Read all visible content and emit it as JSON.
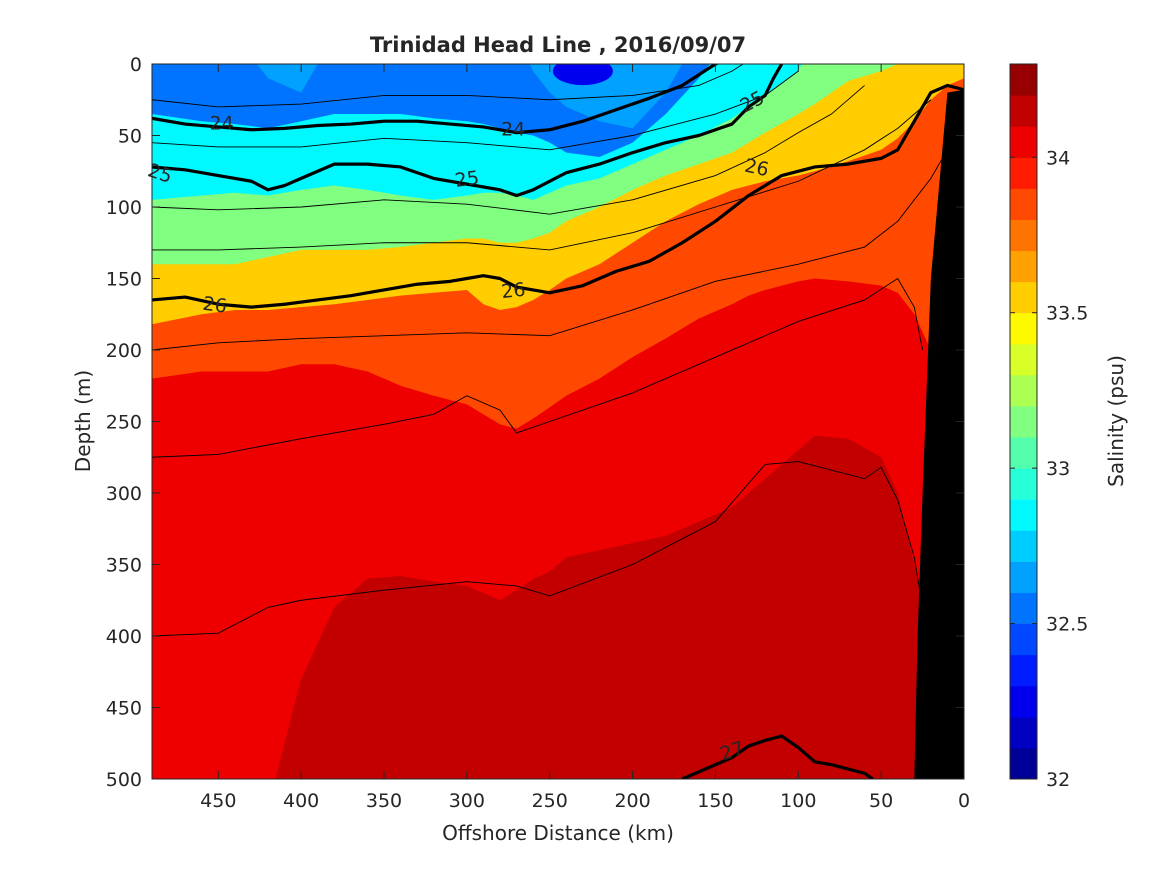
{
  "chart_data": {
    "type": "heatmap",
    "title": "Trinidad Head Line , 2016/09/07",
    "xlabel": "Offshore Distance (km)",
    "ylabel": "Depth (m)",
    "colorbar_label": "Salinity (psu)",
    "xlim": [
      490,
      0
    ],
    "x_reversed": true,
    "ylim": [
      0,
      500
    ],
    "y_reversed": true,
    "clim": [
      32,
      34.3
    ],
    "x_ticks": [
      450,
      400,
      350,
      300,
      250,
      200,
      150,
      100,
      50,
      0
    ],
    "y_ticks": [
      0,
      50,
      100,
      150,
      200,
      250,
      300,
      350,
      400,
      450,
      500
    ],
    "colorbar_ticks": [
      32,
      32.5,
      33,
      33.5,
      34
    ],
    "colorbar_levels": 23,
    "colormap": "jet",
    "grid": false,
    "profile_x": [
      490,
      460,
      440,
      420,
      400,
      380,
      360,
      340,
      320,
      300,
      290,
      280,
      270,
      260,
      250,
      240,
      220,
      200,
      180,
      160,
      140,
      130,
      120,
      100,
      90,
      70,
      50,
      40,
      30,
      20,
      10,
      0
    ],
    "salinity_isolines": [
      {
        "level": 32.5,
        "depth": [
          -20,
          -20,
          -20,
          10,
          20,
          -20,
          -20,
          -20,
          -20,
          -20,
          -20,
          -20,
          -20,
          5,
          20,
          30,
          40,
          45,
          20,
          -20,
          -20,
          -20,
          -20,
          -20,
          -20,
          -20,
          -20,
          -20,
          -20,
          -20,
          -20,
          -20
        ]
      },
      {
        "level": 32.8,
        "depth": [
          35,
          40,
          42,
          45,
          40,
          35,
          35,
          35,
          38,
          40,
          42,
          45,
          48,
          50,
          55,
          62,
          65,
          55,
          35,
          10,
          -20,
          -20,
          -20,
          -20,
          -20,
          -20,
          -20,
          -20,
          -20,
          -20,
          -20,
          -20
        ]
      },
      {
        "level": 33.1,
        "depth": [
          95,
          92,
          90,
          92,
          88,
          85,
          88,
          92,
          95,
          92,
          90,
          90,
          92,
          95,
          90,
          85,
          80,
          70,
          60,
          50,
          38,
          30,
          22,
          5,
          -20,
          -20,
          -20,
          -20,
          -20,
          -20,
          -20,
          -20
        ]
      },
      {
        "level": 33.5,
        "depth": [
          140,
          140,
          140,
          135,
          130,
          130,
          130,
          128,
          125,
          122,
          122,
          125,
          125,
          122,
          118,
          110,
          100,
          88,
          78,
          70,
          62,
          55,
          48,
          35,
          28,
          12,
          5,
          0,
          -20,
          -20,
          -20,
          -20
        ]
      },
      {
        "level": 33.8,
        "depth": [
          182,
          175,
          172,
          172,
          170,
          168,
          165,
          162,
          160,
          158,
          168,
          172,
          170,
          165,
          158,
          150,
          140,
          125,
          110,
          98,
          88,
          85,
          82,
          78,
          75,
          68,
          60,
          52,
          40,
          25,
          15,
          10
        ]
      },
      {
        "level": 34.0,
        "depth": [
          220,
          215,
          215,
          215,
          210,
          210,
          215,
          225,
          232,
          238,
          245,
          252,
          255,
          248,
          240,
          232,
          220,
          205,
          192,
          178,
          168,
          162,
          158,
          152,
          150,
          152,
          155,
          160,
          175,
          200,
          230,
          500
        ]
      },
      {
        "level": 34.15,
        "depth": [
          520,
          520,
          520,
          520,
          430,
          380,
          360,
          358,
          362,
          365,
          370,
          375,
          368,
          360,
          355,
          345,
          340,
          335,
          330,
          320,
          310,
          300,
          290,
          270,
          260,
          262,
          275,
          300,
          350,
          400,
          500,
          500
        ]
      }
    ],
    "density_contours": [
      {
        "level": 24,
        "x": [
          490,
          470,
          450,
          430,
          410,
          390,
          370,
          350,
          330,
          310,
          290,
          270,
          250,
          230,
          210,
          190,
          170,
          150,
          130,
          120
        ],
        "depth": [
          38,
          42,
          44,
          46,
          45,
          43,
          42,
          40,
          40,
          42,
          44,
          48,
          46,
          40,
          32,
          24,
          15,
          0,
          -10,
          -20
        ]
      },
      {
        "level": 25,
        "x": [
          490,
          470,
          450,
          430,
          420,
          410,
          400,
          390,
          380,
          360,
          340,
          320,
          300,
          280,
          270,
          260,
          240,
          220,
          200,
          180,
          160,
          140,
          130,
          120,
          115,
          110
        ],
        "depth": [
          72,
          74,
          78,
          82,
          88,
          85,
          80,
          75,
          70,
          70,
          72,
          80,
          84,
          88,
          92,
          88,
          76,
          70,
          62,
          55,
          50,
          42,
          30,
          22,
          10,
          0
        ]
      },
      {
        "level": 26,
        "x": [
          490,
          470,
          450,
          430,
          410,
          390,
          370,
          350,
          330,
          310,
          300,
          290,
          280,
          270,
          250,
          230,
          210,
          190,
          170,
          150,
          130,
          110,
          90,
          70,
          50,
          40,
          30,
          20,
          10,
          0
        ],
        "depth": [
          165,
          163,
          168,
          170,
          168,
          165,
          162,
          158,
          154,
          152,
          150,
          148,
          150,
          156,
          160,
          155,
          145,
          138,
          125,
          110,
          92,
          78,
          72,
          70,
          66,
          60,
          40,
          20,
          15,
          18
        ]
      },
      {
        "level": 27,
        "x": [
          170,
          160,
          140,
          130,
          120,
          110,
          100,
          90,
          80,
          70,
          60,
          55
        ],
        "depth": [
          500,
          495,
          485,
          477,
          473,
          470,
          478,
          488,
          490,
          493,
          496,
          500
        ]
      }
    ],
    "thin_isopycnals": [
      {
        "x": [
          490,
          450,
          400,
          350,
          300,
          250,
          200,
          160,
          140,
          120
        ],
        "depth": [
          25,
          30,
          28,
          22,
          22,
          25,
          22,
          15,
          5,
          -10
        ]
      },
      {
        "x": [
          490,
          450,
          400,
          350,
          300,
          250,
          200,
          150,
          120,
          100
        ],
        "depth": [
          55,
          58,
          58,
          52,
          55,
          60,
          50,
          35,
          22,
          5
        ]
      },
      {
        "x": [
          490,
          450,
          400,
          350,
          300,
          250,
          200,
          150,
          120,
          100,
          80,
          60
        ],
        "depth": [
          100,
          102,
          100,
          95,
          98,
          105,
          95,
          78,
          62,
          48,
          35,
          15
        ]
      },
      {
        "x": [
          490,
          450,
          400,
          350,
          300,
          250,
          200,
          150,
          100,
          60,
          40,
          20
        ],
        "depth": [
          130,
          130,
          128,
          125,
          125,
          130,
          118,
          100,
          82,
          60,
          45,
          25
        ]
      },
      {
        "x": [
          490,
          450,
          400,
          350,
          300,
          250,
          200,
          150,
          100,
          60,
          40,
          20,
          10
        ],
        "depth": [
          200,
          195,
          192,
          190,
          188,
          190,
          172,
          152,
          140,
          128,
          110,
          80,
          60
        ]
      },
      {
        "x": [
          490,
          450,
          400,
          350,
          320,
          300,
          280,
          270,
          250,
          200,
          150,
          100,
          60,
          40,
          30,
          25
        ],
        "depth": [
          275,
          273,
          262,
          252,
          245,
          232,
          242,
          258,
          250,
          230,
          205,
          180,
          165,
          150,
          170,
          200
        ]
      },
      {
        "x": [
          490,
          450,
          420,
          400,
          350,
          300,
          270,
          250,
          200,
          150,
          120,
          100,
          60,
          50,
          40,
          30,
          25
        ],
        "depth": [
          400,
          398,
          380,
          375,
          368,
          362,
          365,
          372,
          350,
          320,
          280,
          278,
          290,
          282,
          305,
          345,
          380
        ]
      }
    ],
    "contour_labels": [
      {
        "text": "24",
        "x": 448,
        "depth": 41,
        "angle": 0
      },
      {
        "text": "24",
        "x": 272,
        "depth": 45,
        "angle": 0
      },
      {
        "text": "25",
        "x": 128,
        "depth": 26,
        "angle": -28
      },
      {
        "text": "25",
        "x": 485,
        "depth": 76,
        "angle": 18
      },
      {
        "text": "25",
        "x": 300,
        "depth": 80,
        "angle": -8
      },
      {
        "text": "26",
        "x": 125,
        "depth": 72,
        "angle": 12
      },
      {
        "text": "26",
        "x": 452,
        "depth": 168,
        "angle": 8
      },
      {
        "text": "26",
        "x": 272,
        "depth": 158,
        "angle": -6
      },
      {
        "text": "27",
        "x": 140,
        "depth": 480,
        "angle": -18
      }
    ],
    "seafloor": {
      "x": [
        0,
        10,
        20,
        25,
        28,
        30,
        0
      ],
      "depth": [
        18,
        20,
        150,
        300,
        400,
        500,
        500
      ]
    },
    "colors": {
      "seafloor": "#000000",
      "density_contour": "#000000",
      "text": "#262626"
    }
  }
}
